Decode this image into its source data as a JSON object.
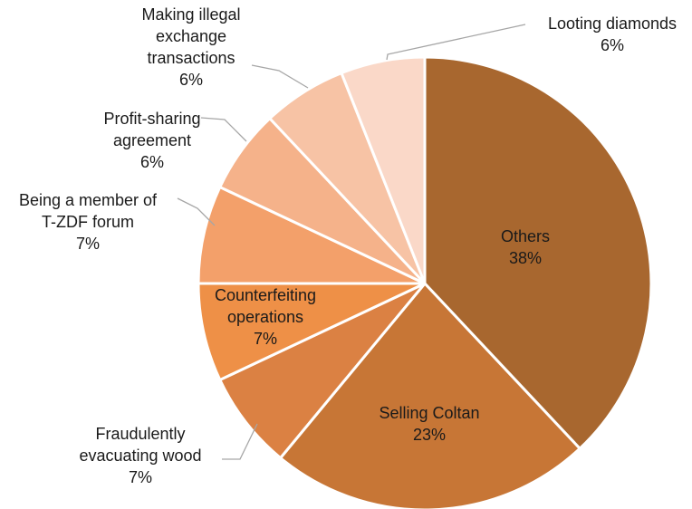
{
  "chart_data": {
    "type": "pie",
    "title": "",
    "slices": [
      {
        "label_lines": [
          "Others",
          "38%"
        ],
        "value": 38,
        "color": "#A8672F"
      },
      {
        "label_lines": [
          "Selling Coltan",
          "23%"
        ],
        "value": 23,
        "color": "#C77636"
      },
      {
        "label_lines": [
          "Fraudulently",
          "evacuating wood",
          "7%"
        ],
        "value": 7,
        "color": "#DB8143"
      },
      {
        "label_lines": [
          "Counterfeiting",
          "operations",
          "7%"
        ],
        "value": 7,
        "color": "#EE9047"
      },
      {
        "label_lines": [
          "Being a member of",
          "T-ZDF forum",
          "7%"
        ],
        "value": 7,
        "color": "#F3A06A"
      },
      {
        "label_lines": [
          "Profit-sharing",
          "agreement",
          "6%"
        ],
        "value": 6,
        "color": "#F5B28A"
      },
      {
        "label_lines": [
          "Making illegal",
          "exchange",
          "transactions",
          "6%"
        ],
        "value": 6,
        "color": "#F7C3A5"
      },
      {
        "label_lines": [
          "Looting diamonds",
          "6%"
        ],
        "value": 6,
        "color": "#FAD8C8"
      }
    ],
    "legend": "none",
    "label_style": "data labels with leader lines"
  }
}
